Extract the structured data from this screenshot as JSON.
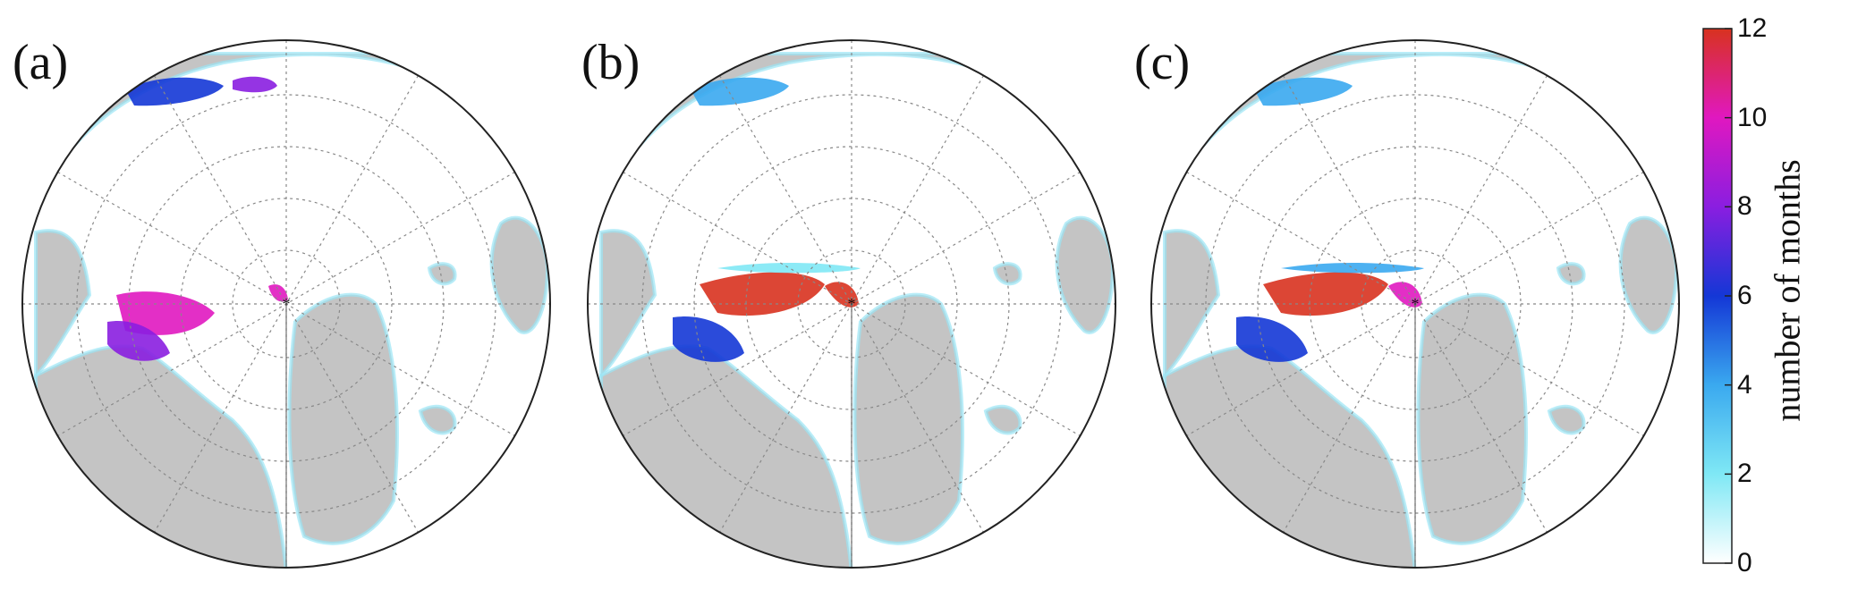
{
  "panels": [
    {
      "label": "(a)"
    },
    {
      "label": "(b)"
    },
    {
      "label": "(c)"
    }
  ],
  "colorbar": {
    "title": "number of months",
    "min": 0,
    "max": 12,
    "ticks": [
      "0",
      "2",
      "4",
      "6",
      "8",
      "10",
      "12"
    ],
    "colors": [
      "#ffffff",
      "#7fe8f5",
      "#3aa9ef",
      "#1437d6",
      "#8a1ee0",
      "#e018c0",
      "#d8321f"
    ]
  },
  "map_colors": {
    "land": "#c4c4c4",
    "ocean": "#ffffff",
    "outline": "#222222",
    "graticule": "#888888"
  }
}
